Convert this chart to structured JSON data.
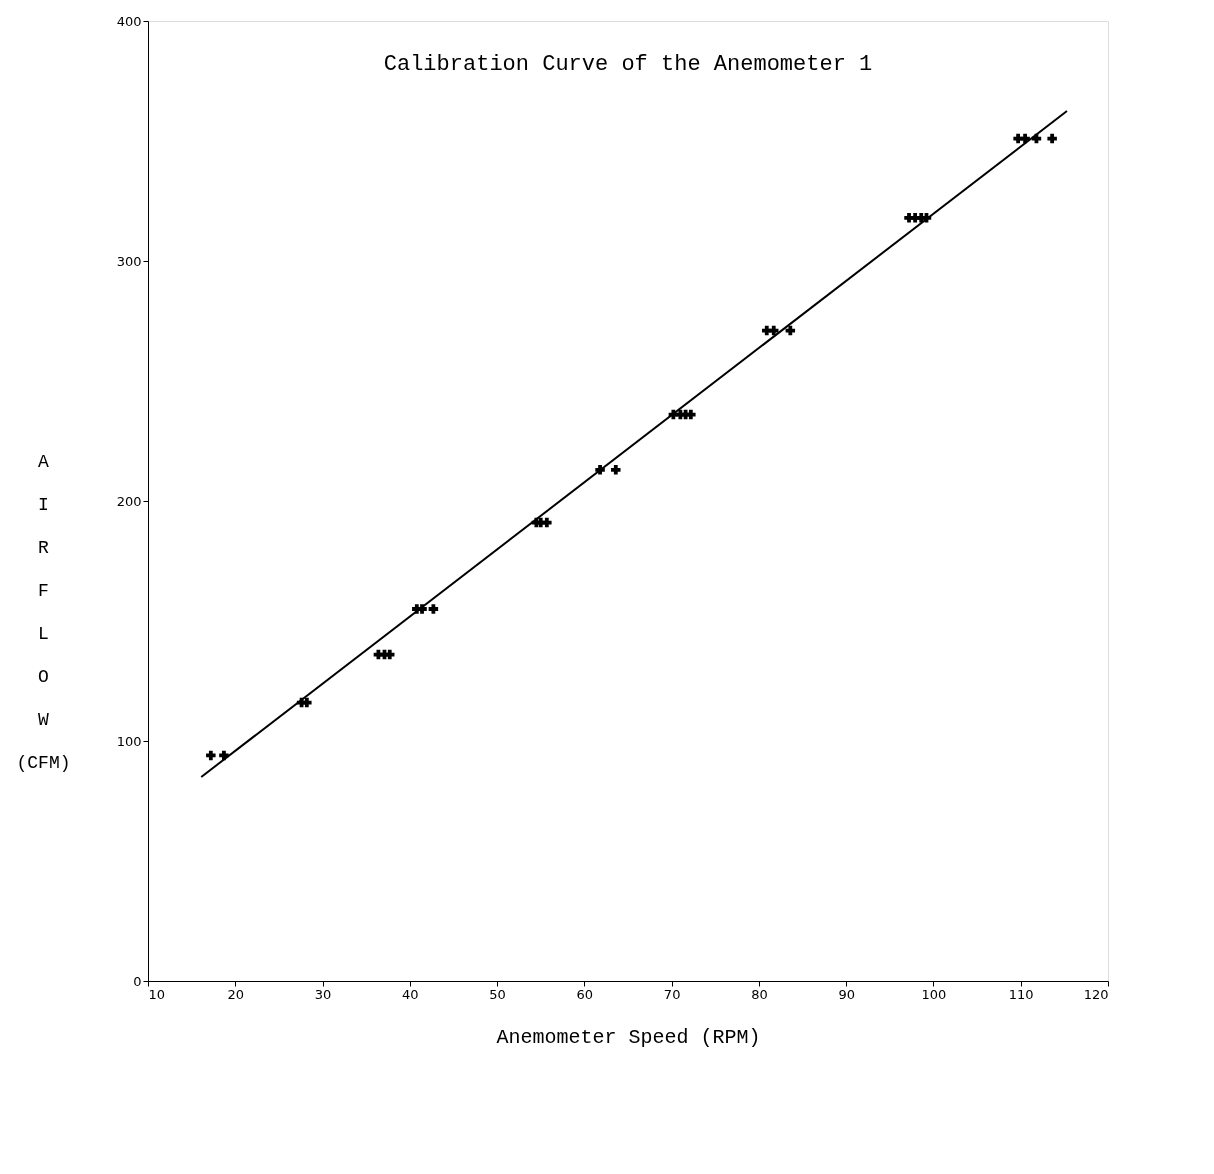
{
  "chart_data": {
    "type": "scatter",
    "title": "Calibration Curve of the Anemometer 1",
    "xlabel": "Anemometer Speed (RPM)",
    "ylabel": "AIR FLOW (CFM)",
    "xlim": [
      10,
      120
    ],
    "xticks": [
      10,
      20,
      30,
      40,
      50,
      60,
      70,
      80,
      90,
      100,
      110,
      120
    ],
    "ylim": [
      0,
      400
    ],
    "yticks": [
      0,
      100,
      200,
      300,
      400
    ],
    "series": [
      {
        "marker": "cross",
        "color": "#000000",
        "x": [
          17.2,
          18.7,
          27.6,
          28.2,
          36.4,
          37.1,
          37.7,
          40.8,
          41.4,
          42.7,
          54.5,
          55.0,
          55.7,
          61.8,
          63.6,
          70.2,
          71.0,
          71.6,
          72.2,
          80.9,
          81.7,
          83.6,
          97.2,
          97.9,
          98.6,
          99.2,
          109.7,
          110.5,
          111.8,
          113.6
        ],
        "values": [
          94,
          94,
          116,
          116,
          136,
          136,
          136,
          155,
          155,
          155,
          191,
          191,
          191,
          213,
          213,
          236,
          236,
          236,
          236,
          271,
          271,
          271,
          318,
          318,
          318,
          318,
          351,
          351,
          351,
          351
        ]
      },
      {
        "type": "line",
        "color": "#000000",
        "line_style": "solid",
        "x": [
          16.1,
          115.3
        ],
        "values": [
          85,
          362.5
        ]
      }
    ]
  }
}
